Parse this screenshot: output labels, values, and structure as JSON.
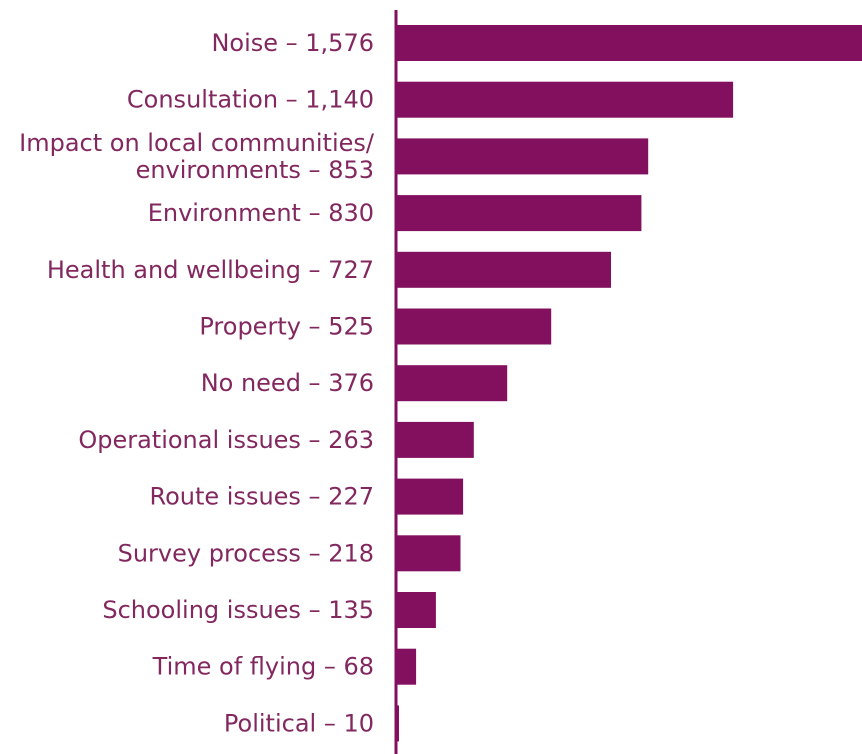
{
  "chart_data": {
    "type": "bar",
    "orientation": "horizontal",
    "title": "",
    "xlabel": "",
    "ylabel": "",
    "grid": false,
    "legend": "none",
    "categories": [
      "Noise",
      "Consultation",
      "Impact on local communities/ environments",
      "Environment",
      "Health and wellbeing",
      "Property",
      "No need",
      "Operational issues",
      "Route issues",
      "Survey process",
      "Schooling issues",
      "Time of flying",
      "Political"
    ],
    "labels": [
      [
        "Noise – 1,576"
      ],
      [
        "Consultation – 1,140"
      ],
      [
        "Impact on local communities/",
        "environments – 853"
      ],
      [
        "Environment – 830"
      ],
      [
        "Health and wellbeing – 727"
      ],
      [
        "Property – 525"
      ],
      [
        "No need – 376"
      ],
      [
        "Operational issues – 263"
      ],
      [
        "Route issues – 227"
      ],
      [
        "Survey process – 218"
      ],
      [
        "Schooling issues – 135"
      ],
      [
        "Time of flying – 68"
      ],
      [
        "Political – 10"
      ]
    ],
    "values": [
      1576,
      1140,
      853,
      830,
      727,
      525,
      376,
      263,
      227,
      218,
      135,
      68,
      10
    ],
    "xlim": [
      0,
      1576
    ]
  },
  "colors": {
    "bar": "#82105f",
    "axis": "#82105f",
    "label": "#82285f"
  }
}
